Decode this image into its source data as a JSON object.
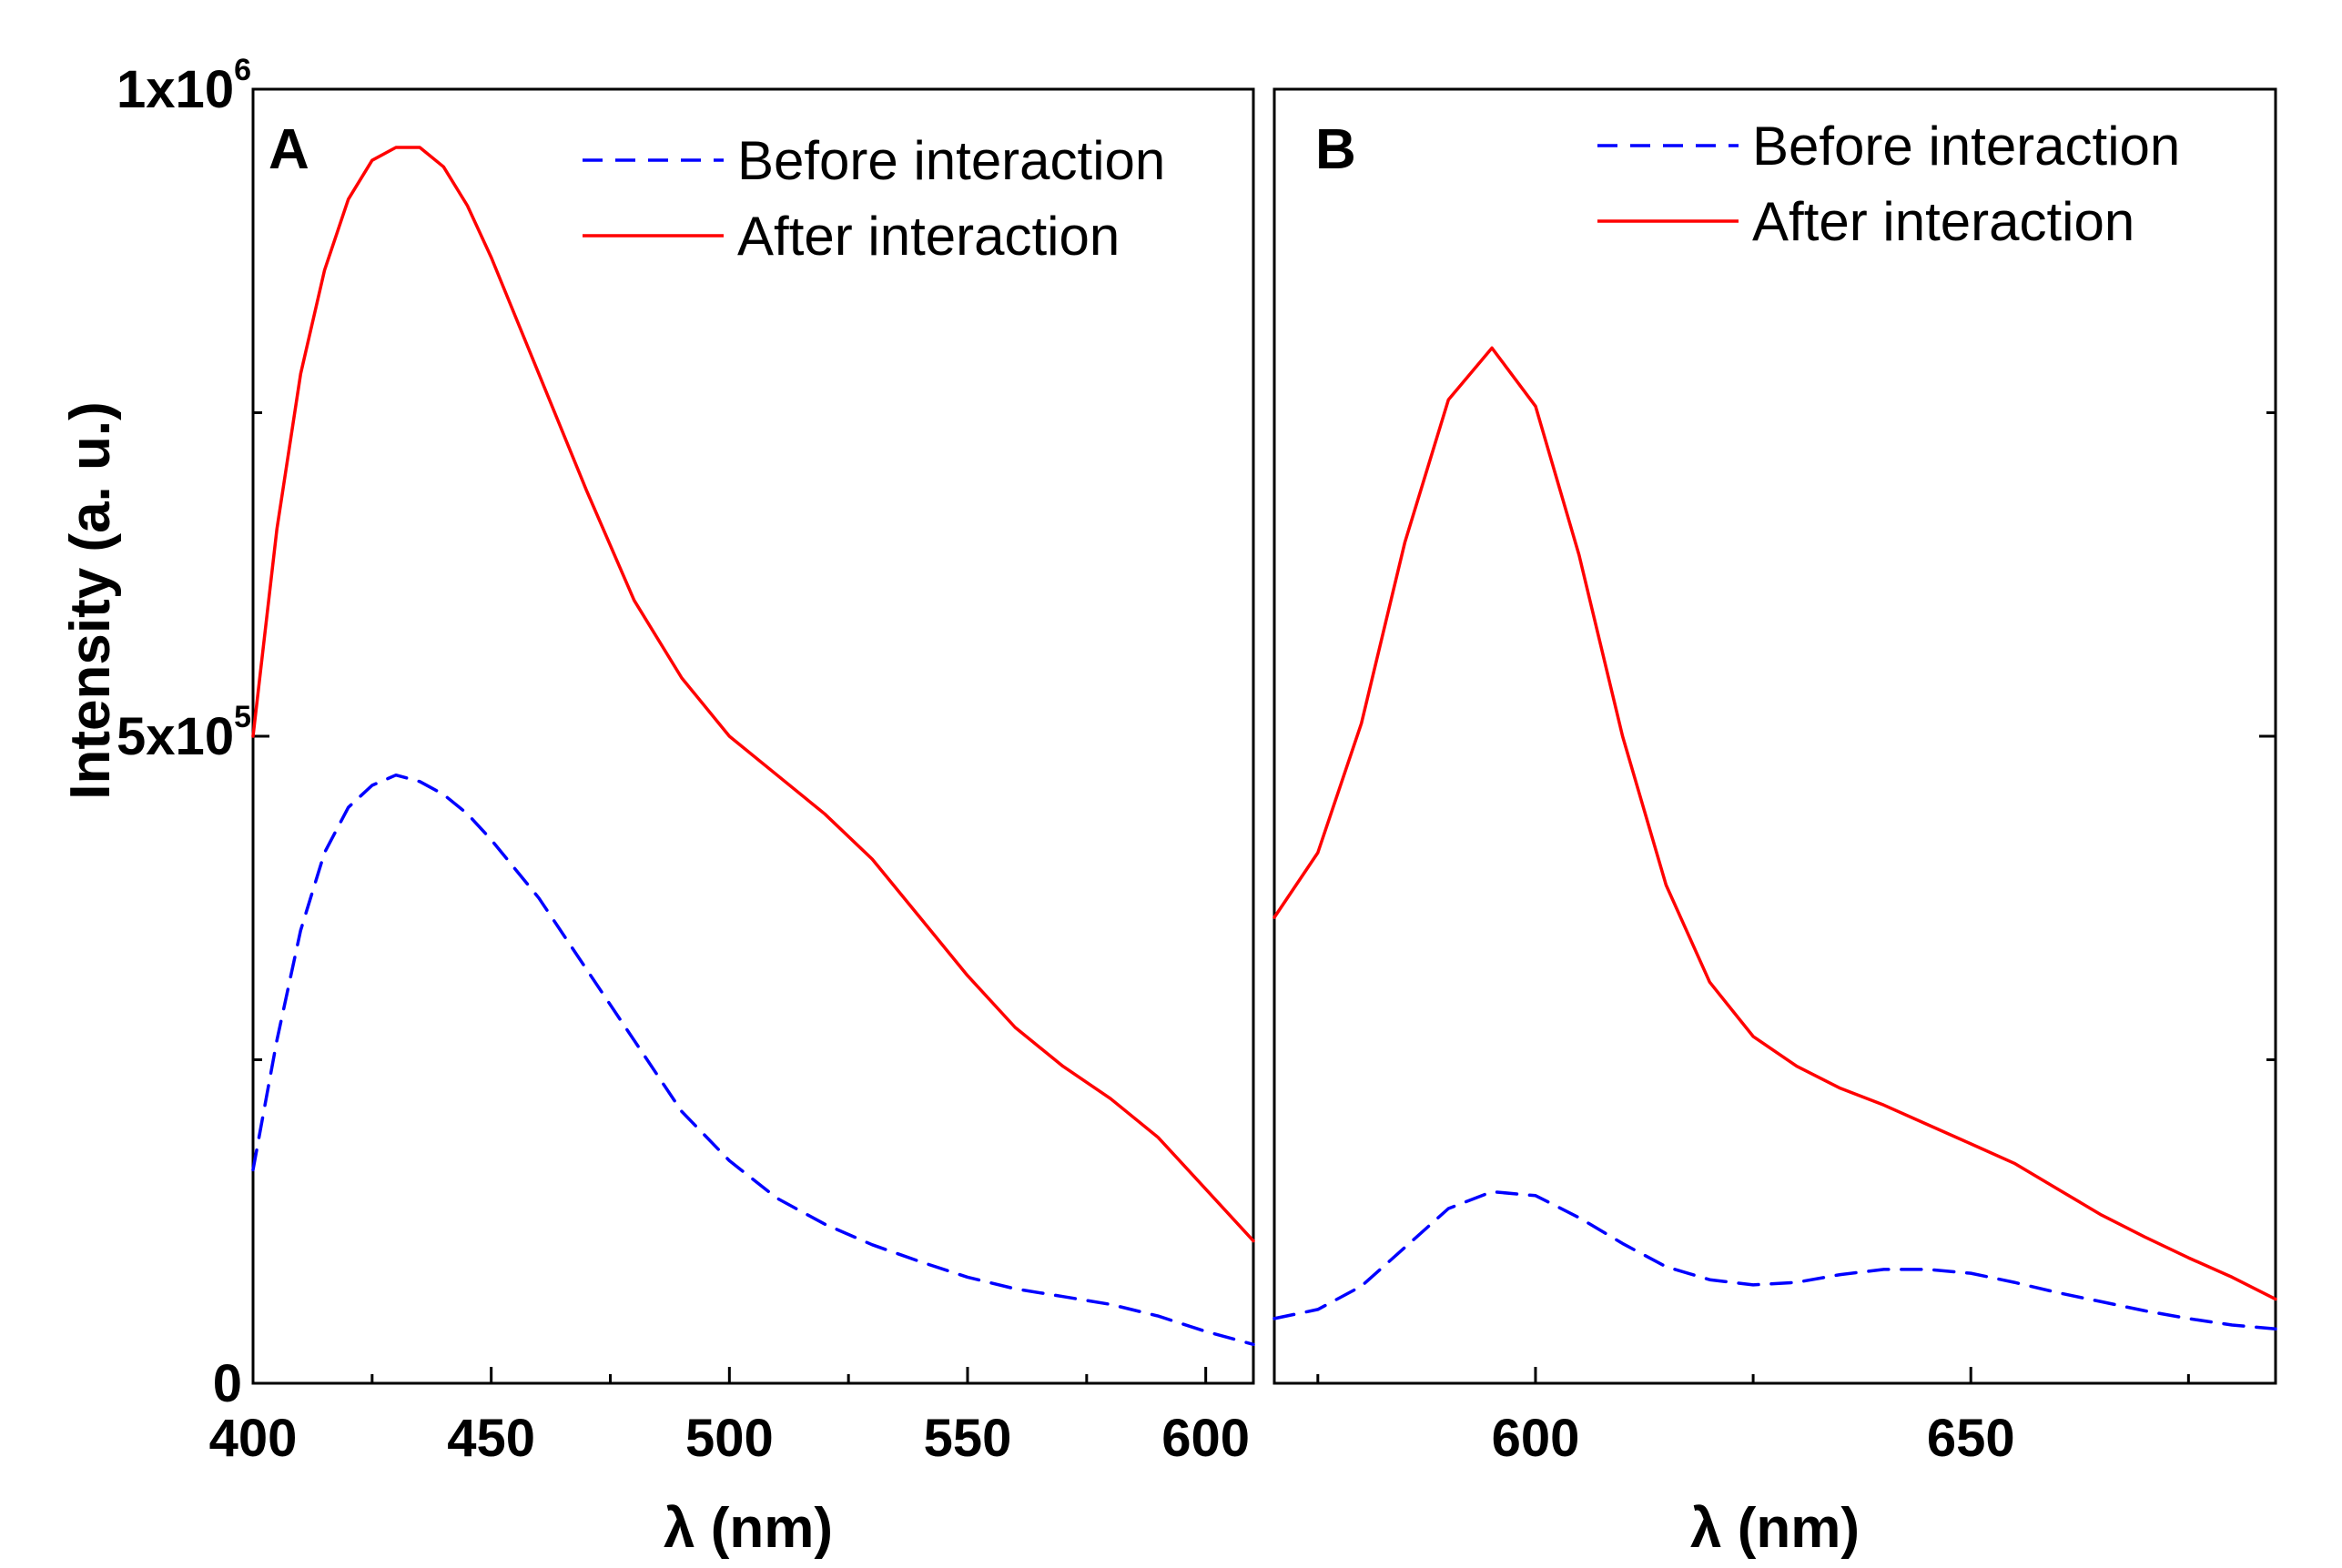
{
  "chart_data": [
    {
      "type": "line",
      "panel_label": "A",
      "ylabel": "Intensity (a. u.)",
      "xlabel": "λ (nm)",
      "xlim": [
        400,
        610
      ],
      "ylim": [
        0,
        1000000
      ],
      "xticks": [
        400,
        450,
        500,
        550,
        600
      ],
      "x_minor_step": 25,
      "yticks": [
        {
          "value": 0,
          "label": "0",
          "sup": ""
        },
        {
          "value": 500000,
          "label": "5x10",
          "sup": "5"
        },
        {
          "value": 1000000,
          "label": "1x10",
          "sup": "6"
        }
      ],
      "y_minor_step": 250000,
      "legend_position": "top-right",
      "series": [
        {
          "name": "Before interaction",
          "style": "dashed",
          "color": "#0000ff",
          "x": [
            400,
            405,
            410,
            415,
            420,
            425,
            430,
            435,
            440,
            445,
            450,
            460,
            470,
            480,
            490,
            500,
            510,
            520,
            530,
            540,
            550,
            560,
            570,
            580,
            590,
            600,
            610
          ],
          "y": [
            165000,
            265000,
            350000,
            410000,
            445000,
            462000,
            470000,
            465000,
            455000,
            440000,
            420000,
            375000,
            320000,
            265000,
            210000,
            172000,
            143000,
            123000,
            107000,
            94000,
            82000,
            73000,
            67000,
            61000,
            52000,
            40000,
            30000
          ]
        },
        {
          "name": "After interaction",
          "style": "solid",
          "color": "#ff0000",
          "x": [
            400,
            405,
            410,
            415,
            420,
            425,
            430,
            435,
            440,
            445,
            450,
            460,
            470,
            480,
            490,
            500,
            510,
            520,
            530,
            540,
            550,
            560,
            570,
            580,
            590,
            600,
            610
          ],
          "y": [
            500000,
            660000,
            780000,
            860000,
            915000,
            945000,
            955000,
            955000,
            940000,
            910000,
            870000,
            780000,
            690000,
            605000,
            545000,
            500000,
            470000,
            440000,
            405000,
            360000,
            315000,
            275000,
            245000,
            220000,
            190000,
            150000,
            110000
          ]
        }
      ]
    },
    {
      "type": "line",
      "panel_label": "B",
      "xlabel": "λ (nm)",
      "xlim": [
        570,
        685
      ],
      "ylim": [
        0,
        1000000
      ],
      "xticks": [
        600,
        650
      ],
      "x_minor_step": 25,
      "y_minor_step": 250000,
      "legend_position": "top-right",
      "series": [
        {
          "name": "Before interaction",
          "style": "dashed",
          "color": "#0000ff",
          "x": [
            570,
            575,
            580,
            585,
            590,
            595,
            600,
            605,
            610,
            615,
            620,
            625,
            630,
            635,
            640,
            645,
            650,
            655,
            660,
            665,
            670,
            675,
            680,
            685
          ],
          "y": [
            50000,
            57000,
            75000,
            105000,
            135000,
            148000,
            145000,
            128000,
            108000,
            90000,
            80000,
            76000,
            78000,
            84000,
            88000,
            88000,
            85000,
            78000,
            70000,
            63000,
            56000,
            50000,
            45000,
            42000
          ]
        },
        {
          "name": "After interaction",
          "style": "solid",
          "color": "#ff0000",
          "x": [
            570,
            575,
            580,
            585,
            590,
            595,
            600,
            605,
            610,
            615,
            620,
            625,
            630,
            635,
            640,
            645,
            650,
            655,
            660,
            665,
            670,
            675,
            680,
            685
          ],
          "y": [
            360000,
            410000,
            510000,
            650000,
            760000,
            800000,
            755000,
            640000,
            500000,
            385000,
            310000,
            268000,
            245000,
            228000,
            215000,
            200000,
            185000,
            170000,
            150000,
            130000,
            113000,
            97000,
            82000,
            65000
          ]
        }
      ]
    }
  ]
}
